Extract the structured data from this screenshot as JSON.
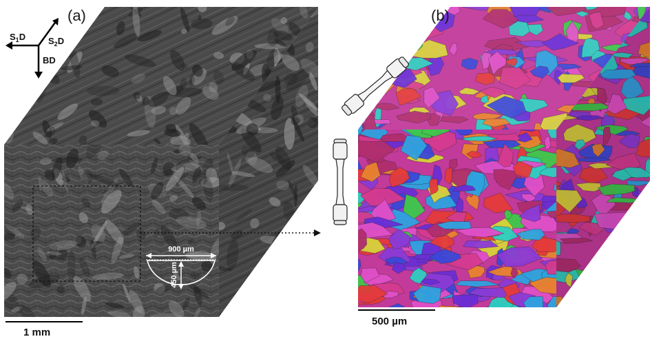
{
  "panels": {
    "a": {
      "letter": "(a)",
      "scale_bar": "1 mm",
      "axes": {
        "s1": {
          "main": "S",
          "sub": "1",
          "tail": "D"
        },
        "s2": {
          "main": "S",
          "sub": "2",
          "tail": "D"
        },
        "bd": "BD"
      },
      "notch_width": "900 µm",
      "notch_depth": "450 µm"
    },
    "b": {
      "letter": "(b)",
      "scale_bar": "500 µm"
    }
  },
  "colors": {
    "sem_base": "#4a4a4a",
    "ebsd_palette": [
      "#d63a8f",
      "#3b48d8",
      "#2ecfc0",
      "#e43b3b",
      "#8b3bd6",
      "#3fc94a",
      "#d8d23b",
      "#e8832e",
      "#e050c8",
      "#2ea3e0",
      "#b02e6e",
      "#6a2ed6"
    ]
  }
}
